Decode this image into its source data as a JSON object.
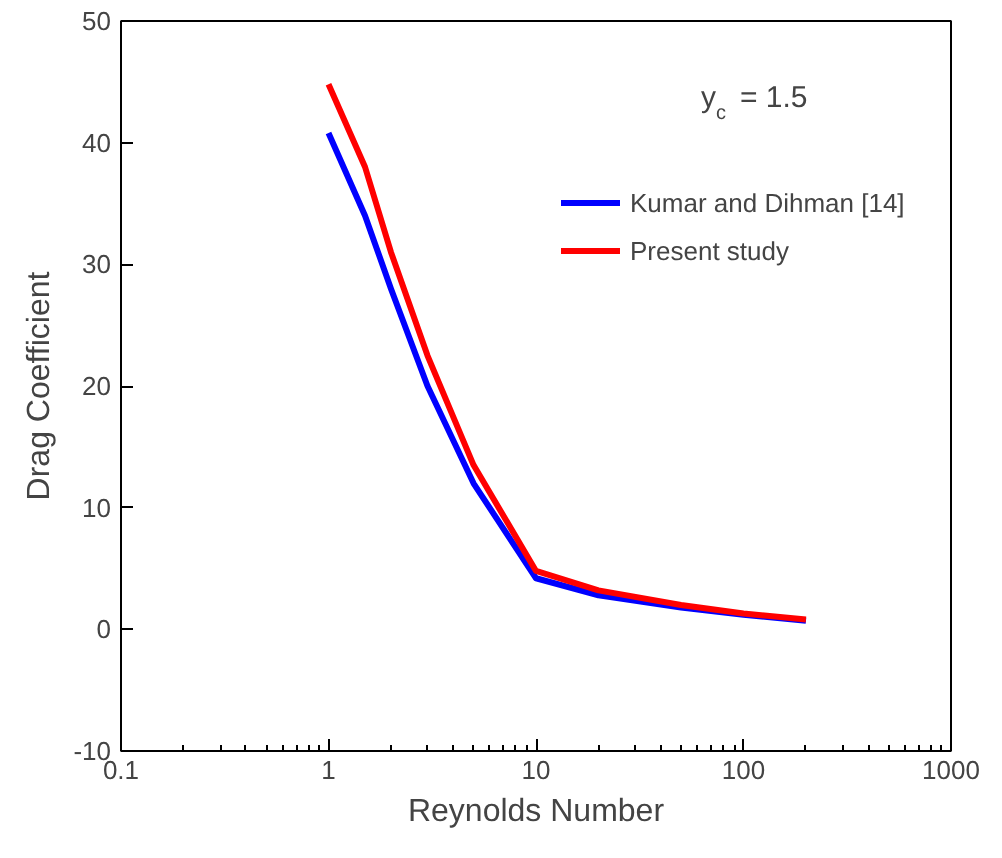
{
  "chart_data": {
    "type": "line",
    "xlabel": "Reynolds Number",
    "ylabel": "Drag Coefficient",
    "legend_title": "y$_{c}$ = 1.5",
    "log": "x",
    "xlim": [
      0.1,
      1000
    ],
    "xticks": [
      0.1,
      1,
      10,
      100,
      1000
    ],
    "ylim": [
      -10,
      50
    ],
    "yticks": [
      -10,
      0,
      10,
      20,
      30,
      40,
      50
    ],
    "grid": false,
    "legend": "top right",
    "x": [
      1,
      1.5,
      2,
      3,
      5,
      10,
      20,
      50,
      100,
      200
    ],
    "series": [
      {
        "name": "Kumar and Dihman [14]",
        "color": "#0000ff",
        "values": [
          40.8,
          34,
          28,
          20,
          12,
          4.2,
          2.8,
          1.8,
          1.2,
          0.7
        ]
      },
      {
        "name": "Present study",
        "color": "#ff0000",
        "values": [
          44.8,
          38,
          31,
          22.5,
          13.5,
          4.8,
          3.2,
          2.0,
          1.3,
          0.8
        ]
      }
    ]
  }
}
